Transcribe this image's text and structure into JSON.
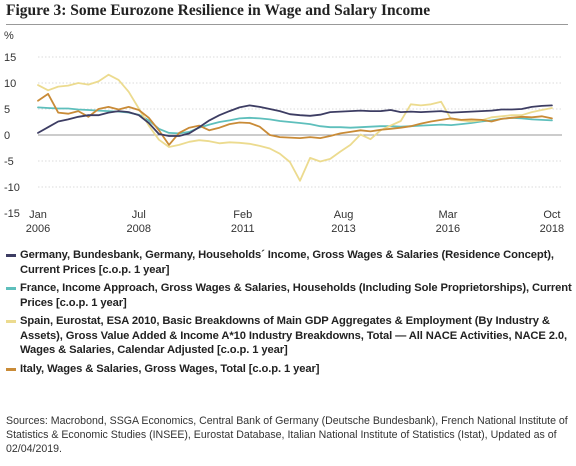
{
  "figure": {
    "title": "Figure 3: Some Eurozone Resilience in Wage and Salary Income",
    "sources": "Sources: Macrobond, SSGA Economics, Central Bank of Germany (Deutsche Bundesbank), French National Institute of Statistics & Economic Studies (INSEE), Eurostat Database, Italian National Institute of Statistics (Istat), Updated as of 02/04/2019."
  },
  "chart_data": {
    "type": "line",
    "ylabel": "%",
    "ylim": [
      -15,
      15
    ],
    "yticks": [
      "15",
      "10",
      "5",
      "0",
      "-5",
      "-10",
      "-15"
    ],
    "xlim": [
      2006.0,
      2019.0
    ],
    "xticks": [
      {
        "top": "Jan",
        "bottom": "2006",
        "x": 2006.0
      },
      {
        "top": "Jul",
        "bottom": "2008",
        "x": 2008.5
      },
      {
        "top": "Feb",
        "bottom": "2011",
        "x": 2011.08
      },
      {
        "top": "Aug",
        "bottom": "2013",
        "x": 2013.58
      },
      {
        "top": "Mar",
        "bottom": "2016",
        "x": 2016.17
      },
      {
        "top": "Oct",
        "bottom": "2018",
        "x": 2018.75
      }
    ],
    "grid": "horizontal",
    "legend_placement": "bottom",
    "series": [
      {
        "name": "Germany, Bundesbank, Germany, Households´ Income, Gross Wages & Salaries (Residence Concept), Current Prices [c.o.p. 1 year]",
        "color": "#3d3d63",
        "points": [
          [
            2006.0,
            0.4
          ],
          [
            2006.25,
            1.5
          ],
          [
            2006.5,
            2.6
          ],
          [
            2006.75,
            3.0
          ],
          [
            2007.0,
            3.5
          ],
          [
            2007.25,
            3.8
          ],
          [
            2007.5,
            3.8
          ],
          [
            2007.75,
            4.3
          ],
          [
            2008.0,
            4.6
          ],
          [
            2008.25,
            4.4
          ],
          [
            2008.5,
            3.8
          ],
          [
            2008.75,
            2.3
          ],
          [
            2009.0,
            0.2
          ],
          [
            2009.25,
            -0.2
          ],
          [
            2009.5,
            -0.2
          ],
          [
            2009.75,
            0.3
          ],
          [
            2010.0,
            1.5
          ],
          [
            2010.25,
            2.8
          ],
          [
            2010.5,
            3.8
          ],
          [
            2010.75,
            4.6
          ],
          [
            2011.0,
            5.3
          ],
          [
            2011.25,
            5.7
          ],
          [
            2011.5,
            5.4
          ],
          [
            2011.75,
            5.0
          ],
          [
            2012.0,
            4.6
          ],
          [
            2012.25,
            4.0
          ],
          [
            2012.5,
            3.8
          ],
          [
            2012.75,
            3.7
          ],
          [
            2013.0,
            3.9
          ],
          [
            2013.25,
            4.4
          ],
          [
            2013.5,
            4.5
          ],
          [
            2013.75,
            4.6
          ],
          [
            2014.0,
            4.7
          ],
          [
            2014.25,
            4.6
          ],
          [
            2014.5,
            4.6
          ],
          [
            2014.75,
            4.8
          ],
          [
            2015.0,
            4.4
          ],
          [
            2015.25,
            4.5
          ],
          [
            2015.5,
            4.4
          ],
          [
            2015.75,
            4.5
          ],
          [
            2016.0,
            4.6
          ],
          [
            2016.25,
            4.3
          ],
          [
            2016.5,
            4.4
          ],
          [
            2016.75,
            4.5
          ],
          [
            2017.0,
            4.6
          ],
          [
            2017.25,
            4.7
          ],
          [
            2017.5,
            4.9
          ],
          [
            2017.75,
            4.9
          ],
          [
            2018.0,
            5.0
          ],
          [
            2018.25,
            5.4
          ],
          [
            2018.5,
            5.6
          ],
          [
            2018.75,
            5.7
          ]
        ]
      },
      {
        "name": "France, Income Approach, Gross Wages & Salaries, Households (Including Sole Proprietorships), Current Prices [c.o.p. 1 year]",
        "color": "#5ebfbc",
        "points": [
          [
            2006.0,
            5.3
          ],
          [
            2006.25,
            5.2
          ],
          [
            2006.5,
            5.1
          ],
          [
            2006.75,
            5.1
          ],
          [
            2007.0,
            4.9
          ],
          [
            2007.25,
            4.8
          ],
          [
            2007.5,
            4.7
          ],
          [
            2007.75,
            4.6
          ],
          [
            2008.0,
            4.5
          ],
          [
            2008.25,
            4.3
          ],
          [
            2008.5,
            3.9
          ],
          [
            2008.75,
            2.8
          ],
          [
            2009.0,
            1.2
          ],
          [
            2009.25,
            0.4
          ],
          [
            2009.5,
            0.3
          ],
          [
            2009.75,
            0.6
          ],
          [
            2010.0,
            1.4
          ],
          [
            2010.25,
            2.0
          ],
          [
            2010.5,
            2.5
          ],
          [
            2010.75,
            2.8
          ],
          [
            2011.0,
            3.2
          ],
          [
            2011.25,
            3.3
          ],
          [
            2011.5,
            3.2
          ],
          [
            2011.75,
            3.0
          ],
          [
            2012.0,
            2.7
          ],
          [
            2012.25,
            2.5
          ],
          [
            2012.5,
            2.3
          ],
          [
            2012.75,
            2.1
          ],
          [
            2013.0,
            1.7
          ],
          [
            2013.25,
            1.5
          ],
          [
            2013.5,
            1.5
          ],
          [
            2013.75,
            1.4
          ],
          [
            2014.0,
            1.5
          ],
          [
            2014.25,
            1.6
          ],
          [
            2014.5,
            1.7
          ],
          [
            2014.75,
            1.7
          ],
          [
            2015.0,
            1.6
          ],
          [
            2015.25,
            1.7
          ],
          [
            2015.5,
            1.8
          ],
          [
            2015.75,
            1.9
          ],
          [
            2016.0,
            2.0
          ],
          [
            2016.25,
            1.9
          ],
          [
            2016.5,
            2.1
          ],
          [
            2016.75,
            2.3
          ],
          [
            2017.0,
            2.6
          ],
          [
            2017.25,
            2.8
          ],
          [
            2017.5,
            3.1
          ],
          [
            2017.75,
            3.3
          ],
          [
            2018.0,
            3.2
          ],
          [
            2018.25,
            3.0
          ],
          [
            2018.5,
            2.9
          ],
          [
            2018.75,
            2.8
          ]
        ]
      },
      {
        "name": "Spain, Eurostat, ESA 2010, Basic Breakdowns of Main GDP Aggregates & Employment (By Industry & Assets), Gross Value Added & Income A*10 Industry Breakdowns, Total — All NACE Activities, NACE 2.0, Wages & Salaries, Calendar Adjusted [c.o.p. 1 year]",
        "color": "#ecdb8f",
        "points": [
          [
            2006.0,
            9.6
          ],
          [
            2006.25,
            8.6
          ],
          [
            2006.5,
            9.3
          ],
          [
            2006.75,
            9.5
          ],
          [
            2007.0,
            10.0
          ],
          [
            2007.25,
            9.7
          ],
          [
            2007.5,
            10.3
          ],
          [
            2007.75,
            11.6
          ],
          [
            2008.0,
            10.6
          ],
          [
            2008.25,
            8.3
          ],
          [
            2008.5,
            5.1
          ],
          [
            2008.75,
            1.8
          ],
          [
            2009.0,
            -0.9
          ],
          [
            2009.25,
            -2.3
          ],
          [
            2009.5,
            -1.9
          ],
          [
            2009.75,
            -1.3
          ],
          [
            2010.0,
            -1.0
          ],
          [
            2010.25,
            -1.2
          ],
          [
            2010.5,
            -1.6
          ],
          [
            2010.75,
            -1.4
          ],
          [
            2011.0,
            -1.5
          ],
          [
            2011.25,
            -1.7
          ],
          [
            2011.5,
            -2.1
          ],
          [
            2011.75,
            -2.6
          ],
          [
            2012.0,
            -3.6
          ],
          [
            2012.25,
            -5.2
          ],
          [
            2012.5,
            -8.8
          ],
          [
            2012.75,
            -4.4
          ],
          [
            2013.0,
            -5.1
          ],
          [
            2013.25,
            -4.6
          ],
          [
            2013.5,
            -3.2
          ],
          [
            2013.75,
            -1.9
          ],
          [
            2014.0,
            0.1
          ],
          [
            2014.25,
            -0.8
          ],
          [
            2014.5,
            0.9
          ],
          [
            2014.75,
            1.8
          ],
          [
            2015.0,
            2.7
          ],
          [
            2015.25,
            5.9
          ],
          [
            2015.5,
            5.7
          ],
          [
            2015.75,
            5.9
          ],
          [
            2016.0,
            6.4
          ],
          [
            2016.25,
            3.0
          ],
          [
            2016.5,
            2.8
          ],
          [
            2016.75,
            2.6
          ],
          [
            2017.0,
            2.8
          ],
          [
            2017.25,
            3.4
          ],
          [
            2017.5,
            3.6
          ],
          [
            2017.75,
            3.8
          ],
          [
            2018.0,
            3.8
          ],
          [
            2018.25,
            4.4
          ],
          [
            2018.5,
            4.8
          ],
          [
            2018.75,
            5.2
          ]
        ]
      },
      {
        "name": "Italy, Wages & Salaries, Gross Wages, Total [c.o.p. 1 year]",
        "color": "#c98b37",
        "points": [
          [
            2006.0,
            6.6
          ],
          [
            2006.25,
            7.9
          ],
          [
            2006.5,
            4.3
          ],
          [
            2006.75,
            4.1
          ],
          [
            2007.0,
            4.6
          ],
          [
            2007.25,
            3.5
          ],
          [
            2007.5,
            5.0
          ],
          [
            2007.75,
            5.4
          ],
          [
            2008.0,
            4.9
          ],
          [
            2008.25,
            5.4
          ],
          [
            2008.5,
            4.8
          ],
          [
            2008.75,
            3.3
          ],
          [
            2009.0,
            0.9
          ],
          [
            2009.25,
            -1.9
          ],
          [
            2009.5,
            0.4
          ],
          [
            2009.75,
            1.4
          ],
          [
            2010.0,
            1.8
          ],
          [
            2010.25,
            0.9
          ],
          [
            2010.5,
            1.4
          ],
          [
            2010.75,
            2.1
          ],
          [
            2011.0,
            2.4
          ],
          [
            2011.25,
            2.3
          ],
          [
            2011.5,
            1.6
          ],
          [
            2011.75,
            0.0
          ],
          [
            2012.0,
            -0.4
          ],
          [
            2012.25,
            -0.5
          ],
          [
            2012.5,
            -0.6
          ],
          [
            2012.75,
            -0.4
          ],
          [
            2013.0,
            -0.6
          ],
          [
            2013.25,
            -0.2
          ],
          [
            2013.5,
            0.3
          ],
          [
            2013.75,
            0.6
          ],
          [
            2014.0,
            0.9
          ],
          [
            2014.25,
            0.7
          ],
          [
            2014.5,
            1.0
          ],
          [
            2014.75,
            1.2
          ],
          [
            2015.0,
            1.4
          ],
          [
            2015.25,
            1.7
          ],
          [
            2015.5,
            2.2
          ],
          [
            2015.75,
            2.6
          ],
          [
            2016.0,
            2.9
          ],
          [
            2016.25,
            3.2
          ],
          [
            2016.5,
            2.9
          ],
          [
            2016.75,
            3.0
          ],
          [
            2017.0,
            2.9
          ],
          [
            2017.25,
            2.6
          ],
          [
            2017.5,
            3.1
          ],
          [
            2017.75,
            3.3
          ],
          [
            2018.0,
            3.5
          ],
          [
            2018.25,
            3.4
          ],
          [
            2018.5,
            3.6
          ],
          [
            2018.75,
            3.2
          ]
        ]
      }
    ]
  }
}
